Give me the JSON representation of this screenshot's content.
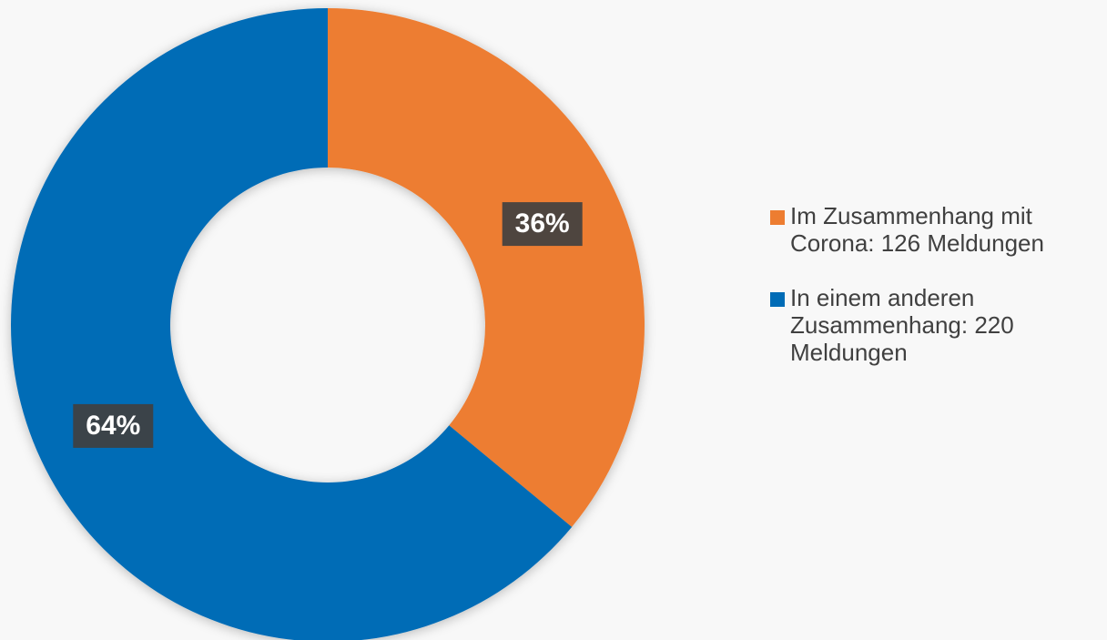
{
  "chart_data": {
    "type": "donut",
    "categories": [
      "Im Zusammenhang mit Corona: 126 Meldungen",
      "In einem anderen Zusammenhang: 220 Meldungen"
    ],
    "values": [
      36,
      64
    ],
    "value_labels": [
      "36%",
      "64%"
    ],
    "colors": [
      "#ed7d31",
      "#006cb6"
    ],
    "legend": "right"
  }
}
